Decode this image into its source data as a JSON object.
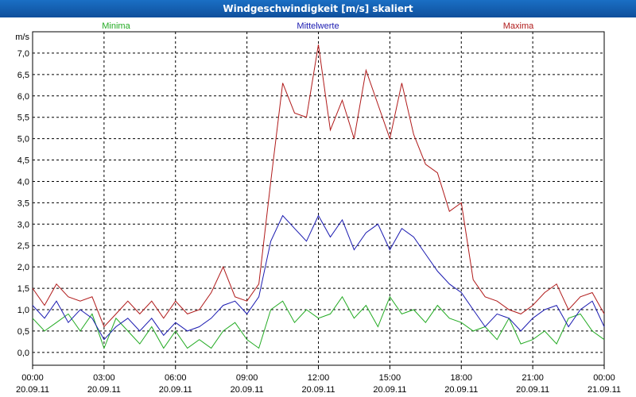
{
  "window": {
    "title": "Windgeschwindigkeit [m/s] skaliert"
  },
  "chart_data": {
    "type": "line",
    "title": "Windgeschwindigkeit [m/s] skaliert",
    "ylabel": "m/s",
    "ylim": [
      -0.3,
      7.5
    ],
    "xlim": [
      0,
      24
    ],
    "grid": true,
    "y_ticks": [
      "0,0",
      "0,5",
      "1,0",
      "1,5",
      "2,0",
      "2,5",
      "3,0",
      "3,5",
      "4,0",
      "4,5",
      "5,0",
      "5,5",
      "6,0",
      "6,5",
      "7,0"
    ],
    "x_ticks": [
      {
        "time": "00:00",
        "date": "20.09.11"
      },
      {
        "time": "03:00",
        "date": "20.09.11"
      },
      {
        "time": "06:00",
        "date": "20.09.11"
      },
      {
        "time": "09:00",
        "date": "20.09.11"
      },
      {
        "time": "12:00",
        "date": "20.09.11"
      },
      {
        "time": "15:00",
        "date": "20.09.11"
      },
      {
        "time": "18:00",
        "date": "20.09.11"
      },
      {
        "time": "21:00",
        "date": "20.09.11"
      },
      {
        "time": "00:00",
        "date": "21.09.11"
      }
    ],
    "series": [
      {
        "name": "Minima",
        "color": "#22aa22",
        "x": [
          0,
          0.5,
          1,
          1.5,
          2,
          2.5,
          3,
          3.5,
          4,
          4.5,
          5,
          5.5,
          6,
          6.5,
          7,
          7.5,
          8,
          8.5,
          9,
          9.5,
          10,
          10.5,
          11,
          11.5,
          12,
          12.5,
          13,
          13.5,
          14,
          14.5,
          15,
          15.5,
          16,
          16.5,
          17,
          17.5,
          18,
          18.5,
          19,
          19.5,
          20,
          20.5,
          21,
          21.5,
          22,
          22.5,
          23,
          23.5,
          24
        ],
        "values": [
          0.8,
          0.5,
          0.7,
          0.9,
          0.5,
          0.9,
          0.1,
          0.8,
          0.5,
          0.2,
          0.6,
          0.1,
          0.5,
          0.1,
          0.3,
          0.1,
          0.5,
          0.7,
          0.3,
          0.1,
          1.0,
          1.2,
          0.7,
          1.0,
          0.8,
          0.9,
          1.3,
          0.8,
          1.1,
          0.6,
          1.3,
          0.9,
          1.0,
          0.7,
          1.1,
          0.8,
          0.7,
          0.5,
          0.6,
          0.3,
          0.8,
          0.2,
          0.3,
          0.5,
          0.2,
          0.8,
          0.9,
          0.5,
          0.3
        ]
      },
      {
        "name": "Mittelwerte",
        "color": "#1a1ab0",
        "x": [
          0,
          0.5,
          1,
          1.5,
          2,
          2.5,
          3,
          3.5,
          4,
          4.5,
          5,
          5.5,
          6,
          6.5,
          7,
          7.5,
          8,
          8.5,
          9,
          9.5,
          10,
          10.5,
          11,
          11.5,
          12,
          12.5,
          13,
          13.5,
          14,
          14.5,
          15,
          15.5,
          16,
          16.5,
          17,
          17.5,
          18,
          18.5,
          19,
          19.5,
          20,
          20.5,
          21,
          21.5,
          22,
          22.5,
          23,
          23.5,
          24
        ],
        "values": [
          1.1,
          0.8,
          1.2,
          0.7,
          1.0,
          0.8,
          0.3,
          0.6,
          0.8,
          0.5,
          0.8,
          0.4,
          0.7,
          0.5,
          0.6,
          0.8,
          1.1,
          1.2,
          0.9,
          1.3,
          2.6,
          3.2,
          2.9,
          2.6,
          3.2,
          2.7,
          3.1,
          2.4,
          2.8,
          3.0,
          2.4,
          2.9,
          2.7,
          2.3,
          1.9,
          1.6,
          1.4,
          1.0,
          0.6,
          0.9,
          0.8,
          0.5,
          0.8,
          1.0,
          1.1,
          0.6,
          1.0,
          1.2,
          0.6
        ]
      },
      {
        "name": "Maxima",
        "color": "#b01a1a",
        "x": [
          0,
          0.5,
          1,
          1.5,
          2,
          2.5,
          3,
          3.5,
          4,
          4.5,
          5,
          5.5,
          6,
          6.5,
          7,
          7.5,
          8,
          8.5,
          9,
          9.5,
          10,
          10.5,
          11,
          11.5,
          12,
          12.5,
          13,
          13.5,
          14,
          14.5,
          15,
          15.5,
          16,
          16.5,
          17,
          17.5,
          18,
          18.5,
          19,
          19.5,
          20,
          20.5,
          21,
          21.5,
          22,
          22.5,
          23,
          23.5,
          24
        ],
        "values": [
          1.5,
          1.1,
          1.6,
          1.3,
          1.2,
          1.3,
          0.6,
          0.9,
          1.2,
          0.9,
          1.2,
          0.8,
          1.2,
          0.9,
          1.0,
          1.4,
          2.0,
          1.3,
          1.2,
          1.6,
          4.0,
          6.3,
          5.6,
          5.5,
          7.2,
          5.2,
          5.9,
          5.0,
          6.6,
          5.8,
          5.0,
          6.3,
          5.1,
          4.4,
          4.2,
          3.3,
          3.5,
          1.7,
          1.3,
          1.2,
          1.0,
          0.9,
          1.1,
          1.4,
          1.6,
          1.0,
          1.3,
          1.4,
          0.9
        ]
      }
    ]
  }
}
